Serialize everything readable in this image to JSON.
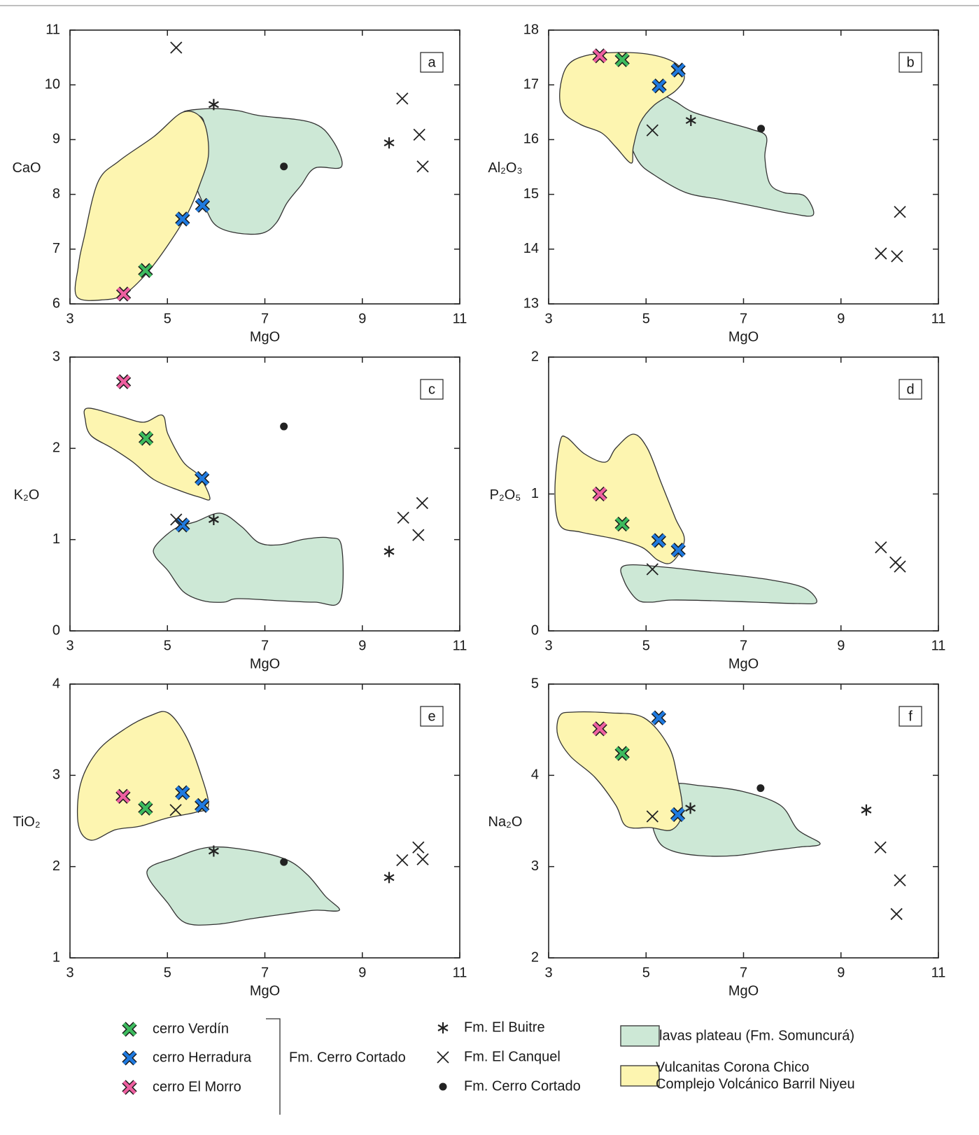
{
  "chart_data": [
    {
      "type": "scatter",
      "label": "a",
      "xlabel": "MgO",
      "ylabel": "CaO",
      "xlim": [
        3,
        11
      ],
      "xticks": [
        3,
        5,
        7,
        9,
        11
      ],
      "ylim": [
        6,
        11
      ],
      "yticks": [
        6,
        7,
        8,
        9,
        10,
        11
      ],
      "series": [
        {
          "name": "cerro Verdín",
          "color": "#3dbb5e",
          "marker": "x-bold",
          "x": [
            4.55
          ],
          "values": [
            6.61
          ]
        },
        {
          "name": "cerro Herradura",
          "color": "#1f7ae0",
          "marker": "x-bold",
          "x": [
            5.31,
            5.72
          ],
          "values": [
            7.55,
            7.8
          ]
        },
        {
          "name": "cerro El Morro",
          "color": "#ee5fa0",
          "marker": "x-bold",
          "x": [
            4.1
          ],
          "values": [
            6.18
          ]
        },
        {
          "name": "Fm. El Buitre",
          "color": "#222222",
          "marker": "asterisk",
          "x": [
            5.95,
            9.55
          ],
          "values": [
            9.64,
            8.94
          ]
        },
        {
          "name": "Fm. El Canquel",
          "color": "#222222",
          "marker": "x",
          "x": [
            5.18,
            9.82,
            10.17,
            10.24
          ],
          "values": [
            10.68,
            9.75,
            9.09,
            8.51
          ]
        },
        {
          "name": "Fm. Cerro Cortado",
          "color": "#222222",
          "marker": "dot",
          "x": [
            7.39
          ],
          "values": [
            8.51
          ]
        }
      ]
    },
    {
      "type": "scatter",
      "label": "b",
      "xlabel": "MgO",
      "ylabel": "Al₂O₃",
      "xlim": [
        3,
        11
      ],
      "xticks": [
        3,
        5,
        7,
        9,
        11
      ],
      "ylim": [
        13,
        18
      ],
      "yticks": [
        13,
        14,
        15,
        16,
        17,
        18
      ],
      "series": [
        {
          "name": "cerro Verdín",
          "color": "#3dbb5e",
          "marker": "x-bold",
          "x": [
            4.51
          ],
          "values": [
            17.46
          ]
        },
        {
          "name": "cerro Herradura",
          "color": "#1f7ae0",
          "marker": "x-bold",
          "x": [
            5.27,
            5.66
          ],
          "values": [
            16.98,
            17.27
          ]
        },
        {
          "name": "cerro El Morro",
          "color": "#ee5fa0",
          "marker": "x-bold",
          "x": [
            4.05
          ],
          "values": [
            17.53
          ]
        },
        {
          "name": "Fm. El Buitre",
          "color": "#222222",
          "marker": "asterisk",
          "x": [
            5.92
          ],
          "values": [
            16.35
          ]
        },
        {
          "name": "Fm. El Canquel",
          "color": "#222222",
          "marker": "x",
          "x": [
            5.13,
            10.21,
            9.82,
            10.15
          ],
          "values": [
            16.17,
            14.68,
            13.92,
            13.87
          ]
        },
        {
          "name": "Fm. Cerro Cortado",
          "color": "#222222",
          "marker": "dot",
          "x": [
            7.36
          ],
          "values": [
            16.2
          ]
        }
      ]
    },
    {
      "type": "scatter",
      "label": "c",
      "xlabel": "MgO",
      "ylabel": "K₂O",
      "xlim": [
        3,
        11
      ],
      "xticks": [
        3,
        5,
        7,
        9,
        11
      ],
      "ylim": [
        0,
        3
      ],
      "yticks": [
        0,
        1,
        2,
        3
      ],
      "series": [
        {
          "name": "cerro Verdín",
          "color": "#3dbb5e",
          "marker": "x-bold",
          "x": [
            4.56
          ],
          "values": [
            2.11
          ]
        },
        {
          "name": "cerro Herradura",
          "color": "#1f7ae0",
          "marker": "x-bold",
          "x": [
            5.71,
            5.31
          ],
          "values": [
            1.67,
            1.16
          ]
        },
        {
          "name": "cerro El Morro",
          "color": "#ee5fa0",
          "marker": "x-bold",
          "x": [
            4.1
          ],
          "values": [
            2.73
          ]
        },
        {
          "name": "Fm. El Buitre",
          "color": "#222222",
          "marker": "asterisk",
          "x": [
            5.95,
            9.55
          ],
          "values": [
            1.22,
            0.87
          ]
        },
        {
          "name": "Fm. El Canquel",
          "color": "#222222",
          "marker": "x",
          "x": [
            5.18,
            9.84,
            10.23,
            10.15
          ],
          "values": [
            1.22,
            1.24,
            1.4,
            1.05
          ]
        },
        {
          "name": "Fm. Cerro Cortado",
          "color": "#222222",
          "marker": "dot",
          "x": [
            7.39
          ],
          "values": [
            2.24
          ]
        }
      ]
    },
    {
      "type": "scatter",
      "label": "d",
      "xlabel": "MgO",
      "ylabel": "P₂O₅",
      "xlim": [
        3,
        11
      ],
      "xticks": [
        3,
        5,
        7,
        9,
        11
      ],
      "ylim": [
        0,
        2
      ],
      "yticks": [
        0,
        1,
        2
      ],
      "series": [
        {
          "name": "cerro Verdín",
          "color": "#3dbb5e",
          "marker": "x-bold",
          "x": [
            4.51
          ],
          "values": [
            0.78
          ]
        },
        {
          "name": "cerro Herradura",
          "color": "#1f7ae0",
          "marker": "x-bold",
          "x": [
            5.26,
            5.66
          ],
          "values": [
            0.66,
            0.59
          ]
        },
        {
          "name": "cerro El Morro",
          "color": "#ee5fa0",
          "marker": "x-bold",
          "x": [
            4.05
          ],
          "values": [
            1.0
          ]
        },
        {
          "name": "Fm. El Canquel",
          "color": "#222222",
          "marker": "x",
          "x": [
            5.13,
            9.82,
            10.12,
            10.21
          ],
          "values": [
            0.45,
            0.61,
            0.5,
            0.47
          ]
        }
      ]
    },
    {
      "type": "scatter",
      "label": "e",
      "xlabel": "MgO",
      "ylabel": "TiO₂",
      "xlim": [
        3,
        11
      ],
      "xticks": [
        3,
        5,
        7,
        9,
        11
      ],
      "ylim": [
        1,
        4
      ],
      "yticks": [
        1,
        2,
        3,
        4
      ],
      "series": [
        {
          "name": "cerro Verdín",
          "color": "#3dbb5e",
          "marker": "x-bold",
          "x": [
            4.55
          ],
          "values": [
            2.64
          ]
        },
        {
          "name": "cerro Herradura",
          "color": "#1f7ae0",
          "marker": "x-bold",
          "x": [
            5.31,
            5.71
          ],
          "values": [
            2.81,
            2.67
          ]
        },
        {
          "name": "cerro El Morro",
          "color": "#ee5fa0",
          "marker": "x-bold",
          "x": [
            4.09
          ],
          "values": [
            2.77
          ]
        },
        {
          "name": "Fm. El Buitre",
          "color": "#222222",
          "marker": "asterisk",
          "x": [
            5.95,
            9.55
          ],
          "values": [
            2.17,
            1.88
          ]
        },
        {
          "name": "Fm. El Canquel",
          "color": "#222222",
          "marker": "x",
          "x": [
            5.17,
            9.82,
            10.15,
            10.24
          ],
          "values": [
            2.62,
            2.07,
            2.21,
            2.08
          ]
        },
        {
          "name": "Fm. Cerro Cortado",
          "color": "#222222",
          "marker": "dot",
          "x": [
            7.39
          ],
          "values": [
            2.05
          ]
        }
      ]
    },
    {
      "type": "scatter",
      "label": "f",
      "xlabel": "MgO",
      "ylabel": "Na₂O",
      "xlim": [
        3,
        11
      ],
      "xticks": [
        3,
        5,
        7,
        9,
        11
      ],
      "ylim": [
        2,
        5
      ],
      "yticks": [
        2,
        3,
        4,
        5
      ],
      "series": [
        {
          "name": "cerro Verdín",
          "color": "#3dbb5e",
          "marker": "x-bold",
          "x": [
            4.51
          ],
          "values": [
            4.24
          ]
        },
        {
          "name": "cerro Herradura",
          "color": "#1f7ae0",
          "marker": "x-bold",
          "x": [
            5.26,
            5.65
          ],
          "values": [
            4.63,
            3.57
          ]
        },
        {
          "name": "cerro El Morro",
          "color": "#ee5fa0",
          "marker": "x-bold",
          "x": [
            4.05
          ],
          "values": [
            4.51
          ]
        },
        {
          "name": "Fm. El Buitre",
          "color": "#222222",
          "marker": "asterisk",
          "x": [
            5.91,
            9.52
          ],
          "values": [
            3.64,
            3.62
          ]
        },
        {
          "name": "Fm. El Canquel",
          "color": "#222222",
          "marker": "x",
          "x": [
            5.13,
            9.81,
            10.21,
            10.14
          ],
          "values": [
            3.55,
            3.21,
            2.85,
            2.48
          ]
        },
        {
          "name": "Fm. Cerro Cortado",
          "color": "#222222",
          "marker": "dot",
          "x": [
            7.35
          ],
          "values": [
            3.86
          ]
        }
      ]
    }
  ],
  "legend_group_label": "Fm. Cerro Cortado",
  "fields": [
    {
      "name": [
        "lavas plateau (Fm. Somuncurá)"
      ],
      "color": "#cde8d6"
    },
    {
      "name": [
        "Vulcanitas Corona Chico",
        "Complejo Volcánico Barril Niyeu"
      ],
      "color": "#fdf5b0"
    }
  ]
}
